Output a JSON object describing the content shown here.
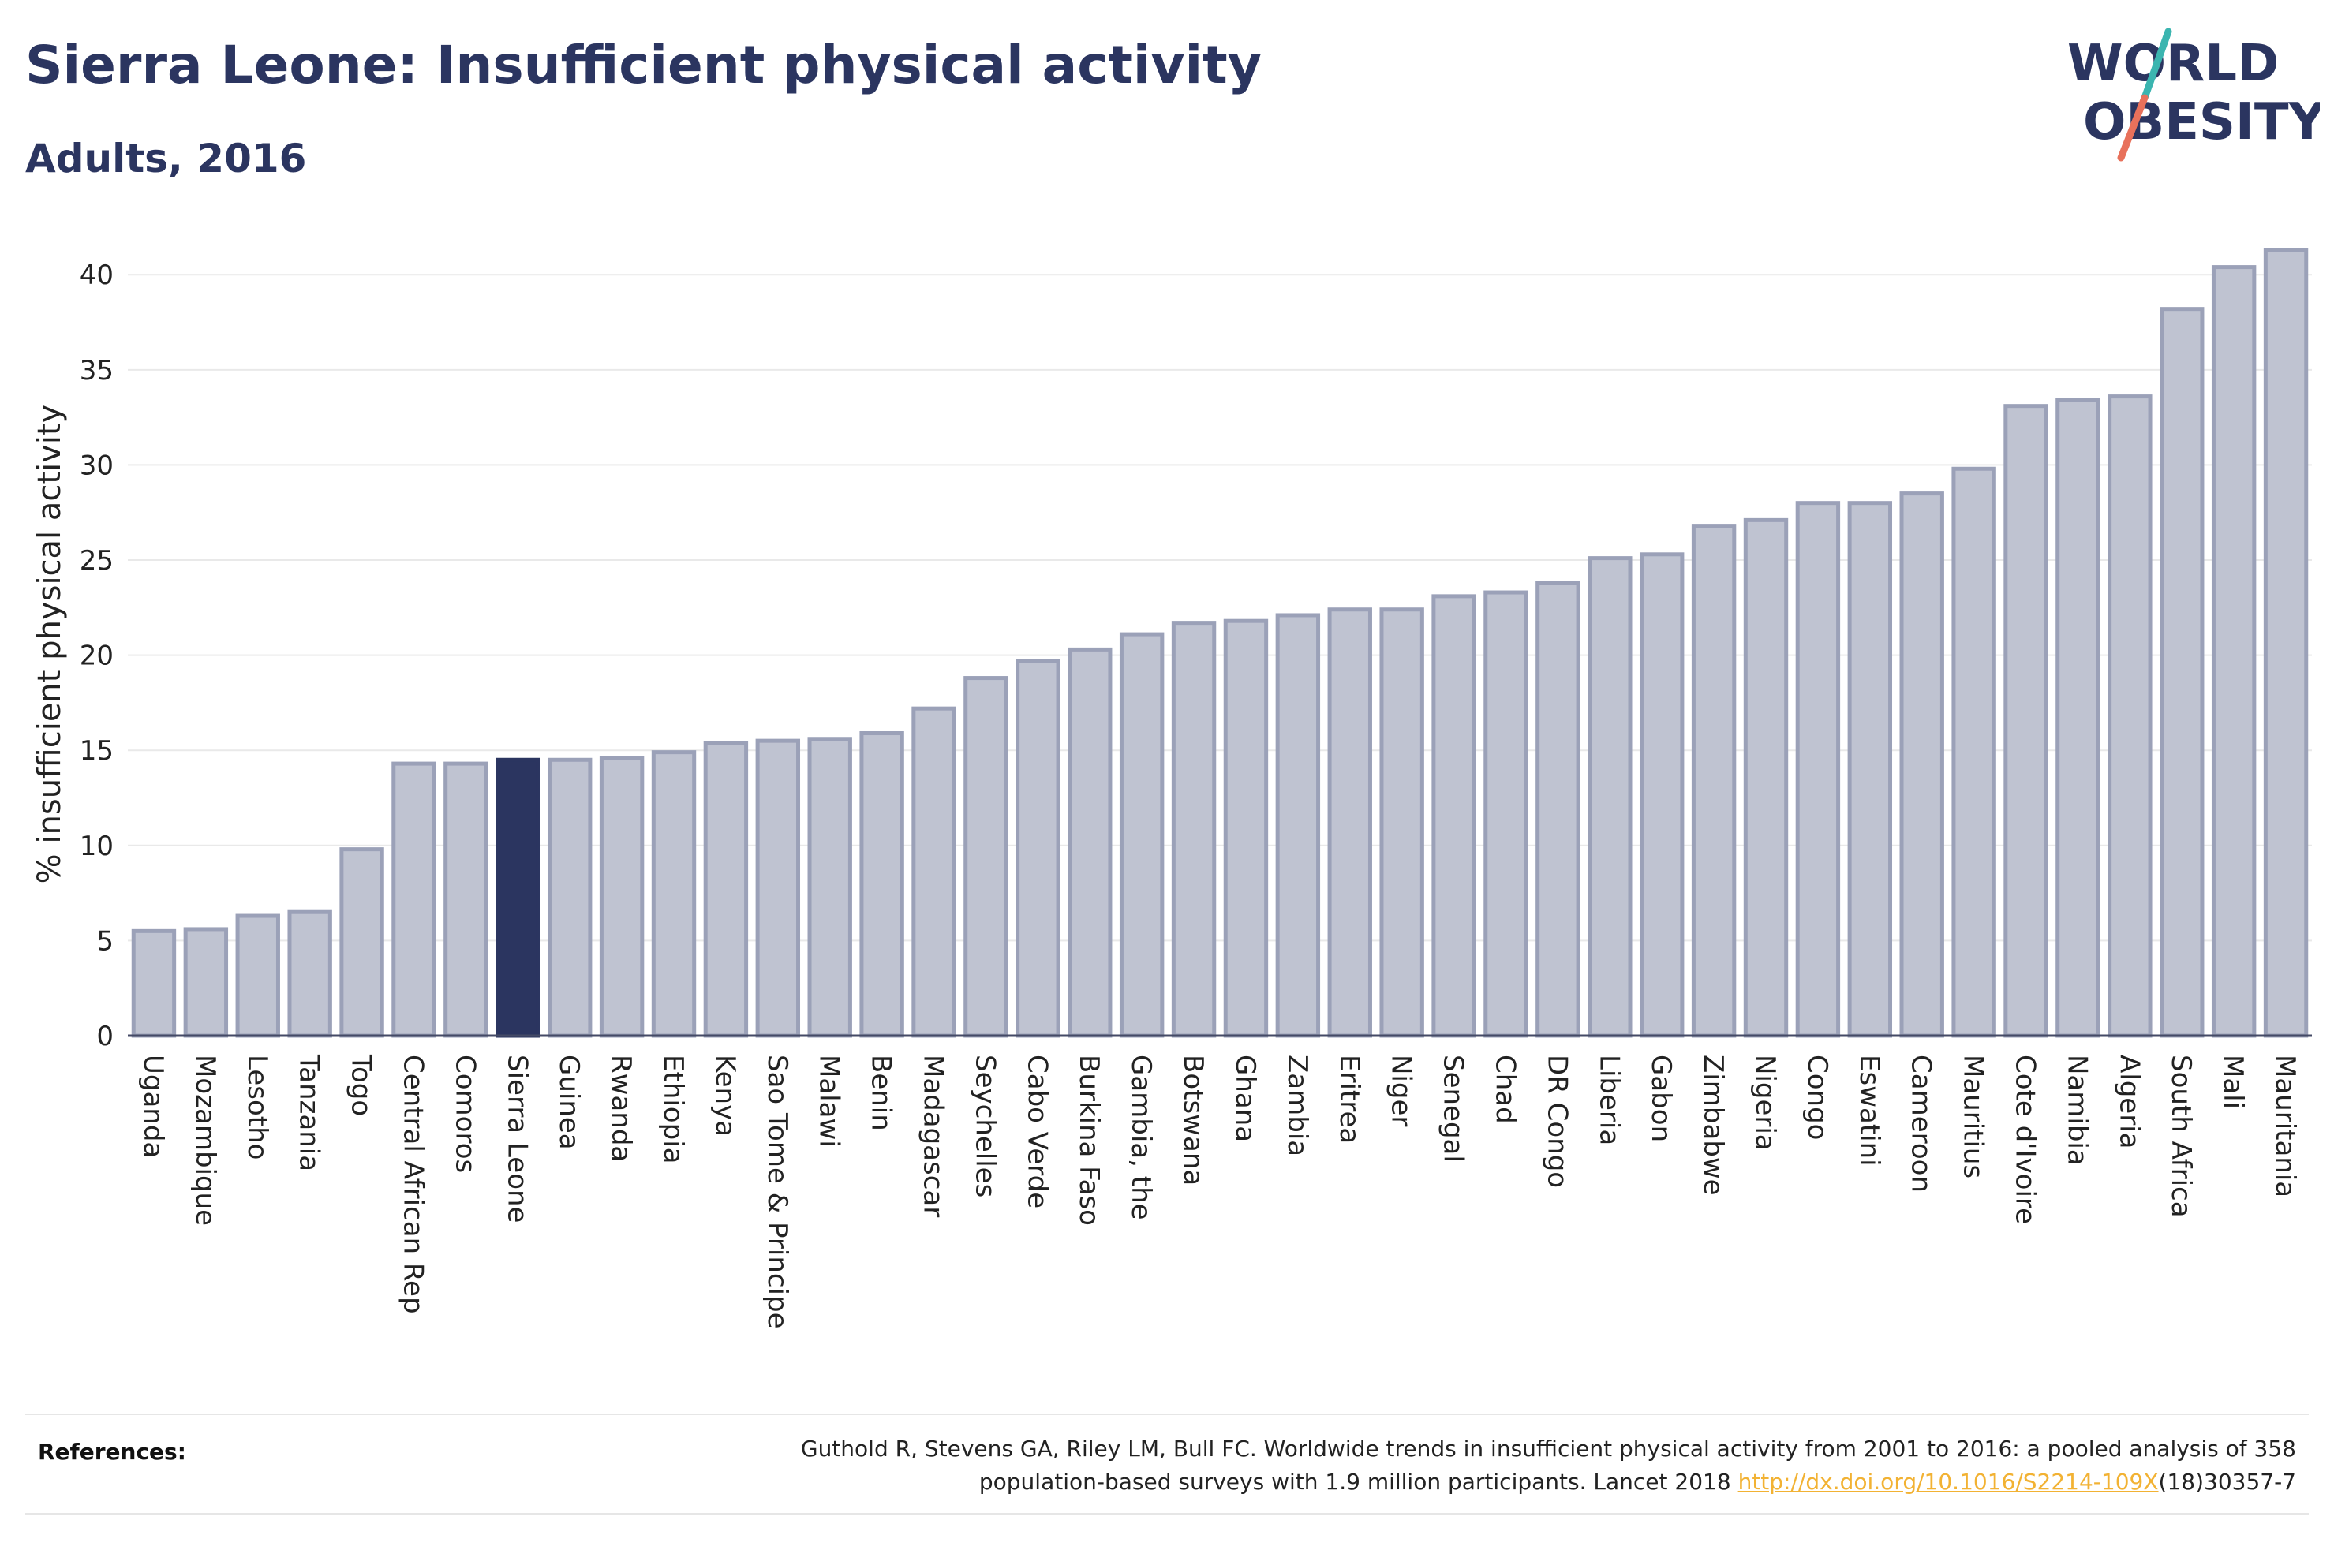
{
  "header": {
    "title": "Sierra Leone: Insufficient physical activity",
    "subtitle": "Adults, 2016"
  },
  "logo": {
    "line1": "WORLD",
    "line2": "OBESITY",
    "icon": "world-obesity-logo",
    "accent_teal": "#3bb5b0",
    "accent_coral": "#e8715b"
  },
  "colors": {
    "bar": "#bfc3d1",
    "bar_stroke": "#9ba1b8",
    "highlight": "#2b3560",
    "text": "#2b3560"
  },
  "chart_data": {
    "type": "bar",
    "title": "Sierra Leone: Insufficient physical activity",
    "subtitle": "Adults, 2016",
    "xlabel": "",
    "ylabel": "% insufficient physical activity",
    "ylim": [
      0,
      42
    ],
    "yticks": [
      0,
      5,
      10,
      15,
      20,
      25,
      30,
      35,
      40
    ],
    "grid": true,
    "highlight": "Sierra Leone",
    "categories": [
      "Uganda",
      "Mozambique",
      "Lesotho",
      "Tanzania",
      "Togo",
      "Central African Rep",
      "Comoros",
      "Sierra Leone",
      "Guinea",
      "Rwanda",
      "Ethiopia",
      "Kenya",
      "Sao Tome & Principe",
      "Malawi",
      "Benin",
      "Madagascar",
      "Seychelles",
      "Cabo Verde",
      "Burkina Faso",
      "Gambia, the",
      "Botswana",
      "Ghana",
      "Zambia",
      "Eritrea",
      "Niger",
      "Senegal",
      "Chad",
      "DR Congo",
      "Liberia",
      "Gabon",
      "Zimbabwe",
      "Nigeria",
      "Congo",
      "Eswatini",
      "Cameroon",
      "Mauritius",
      "Cote d'Ivoire",
      "Namibia",
      "Algeria",
      "South Africa",
      "Mali",
      "Mauritania"
    ],
    "values": [
      5.5,
      5.6,
      6.3,
      6.5,
      9.8,
      14.3,
      14.3,
      14.5,
      14.5,
      14.6,
      14.9,
      15.4,
      15.5,
      15.6,
      15.9,
      17.2,
      18.8,
      19.7,
      20.3,
      21.1,
      21.7,
      21.8,
      22.1,
      22.4,
      22.4,
      23.1,
      23.3,
      23.8,
      25.1,
      25.3,
      26.8,
      27.1,
      28.0,
      28.0,
      28.5,
      29.8,
      33.1,
      33.4,
      33.6,
      38.2,
      40.4,
      41.3
    ]
  },
  "references": {
    "label": "References:",
    "text_line1": "Guthold R, Stevens GA, Riley LM, Bull FC. Worldwide trends in insufficient physical activity from 2001 to 2016: a pooled analysis of 358",
    "text_line2": "population-based surveys with 1.9 million participants. Lancet 2018 ",
    "link": "http://dx.doi.org/10.1016/S2214-109X",
    "suffix": "(18)30357-7"
  }
}
